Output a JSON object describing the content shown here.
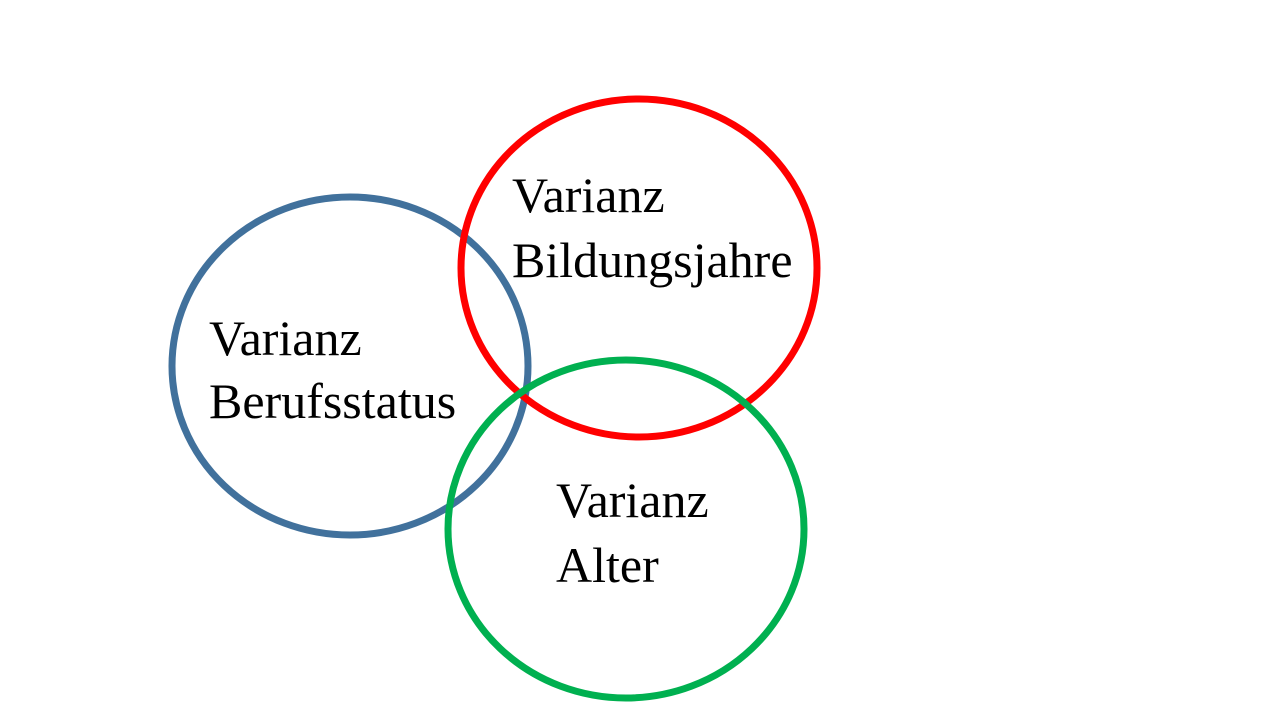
{
  "diagram": {
    "circles": [
      {
        "id": "berufsstatus",
        "label_line1": "Varianz",
        "label_line2": "Berufsstatus",
        "color": "#41719C"
      },
      {
        "id": "bildungsjahre",
        "label_line1": "Varianz",
        "label_line2": "Bildungsjahre",
        "color": "#FF0000"
      },
      {
        "id": "alter",
        "label_line1": "Varianz",
        "label_line2": "Alter",
        "color": "#00B050"
      }
    ]
  }
}
